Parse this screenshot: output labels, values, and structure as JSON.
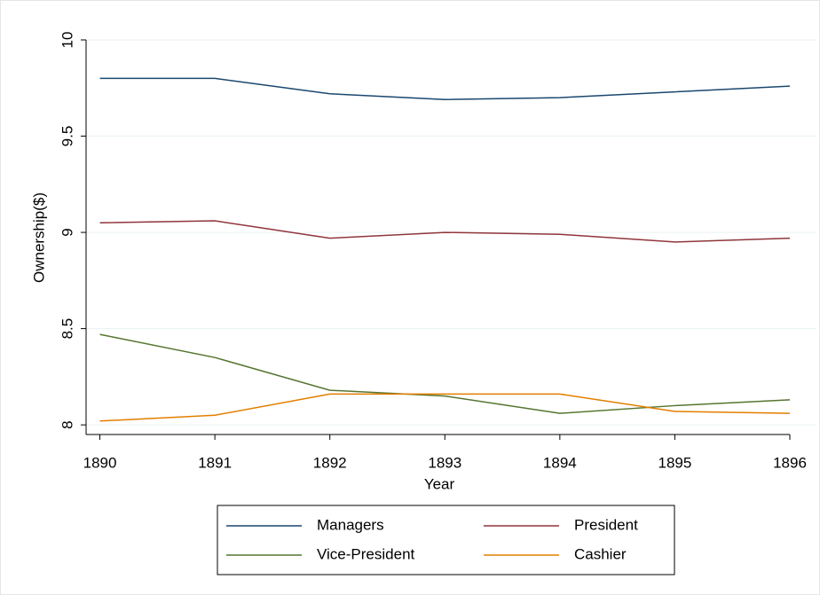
{
  "chart_data": {
    "type": "line",
    "x_label": "Year",
    "y_label": "Ownership($)",
    "x": [
      1890,
      1891,
      1892,
      1893,
      1894,
      1895,
      1896
    ],
    "series": [
      {
        "name": "Managers",
        "color": "#1a476f",
        "values": [
          9.8,
          9.8,
          9.72,
          9.69,
          9.7,
          9.73,
          9.76
        ]
      },
      {
        "name": "President",
        "color": "#90353b",
        "values": [
          9.05,
          9.06,
          8.97,
          9.0,
          8.99,
          8.95,
          8.97
        ]
      },
      {
        "name": "Vice-President",
        "color": "#55752f",
        "values": [
          8.47,
          8.35,
          8.18,
          8.15,
          8.06,
          8.1,
          8.13
        ]
      },
      {
        "name": "Cashier",
        "color": "#e37e00",
        "values": [
          8.02,
          8.05,
          8.16,
          8.16,
          8.16,
          8.07,
          8.06
        ]
      }
    ],
    "xlim": [
      1889.88,
      1896
    ],
    "xticks": [
      1890,
      1891,
      1892,
      1893,
      1894,
      1895,
      1896
    ],
    "ylim": [
      7.95,
      10
    ],
    "yticks": [
      8,
      8.5,
      9,
      9.5,
      10
    ],
    "grid": true,
    "legend_position": "bottom"
  }
}
